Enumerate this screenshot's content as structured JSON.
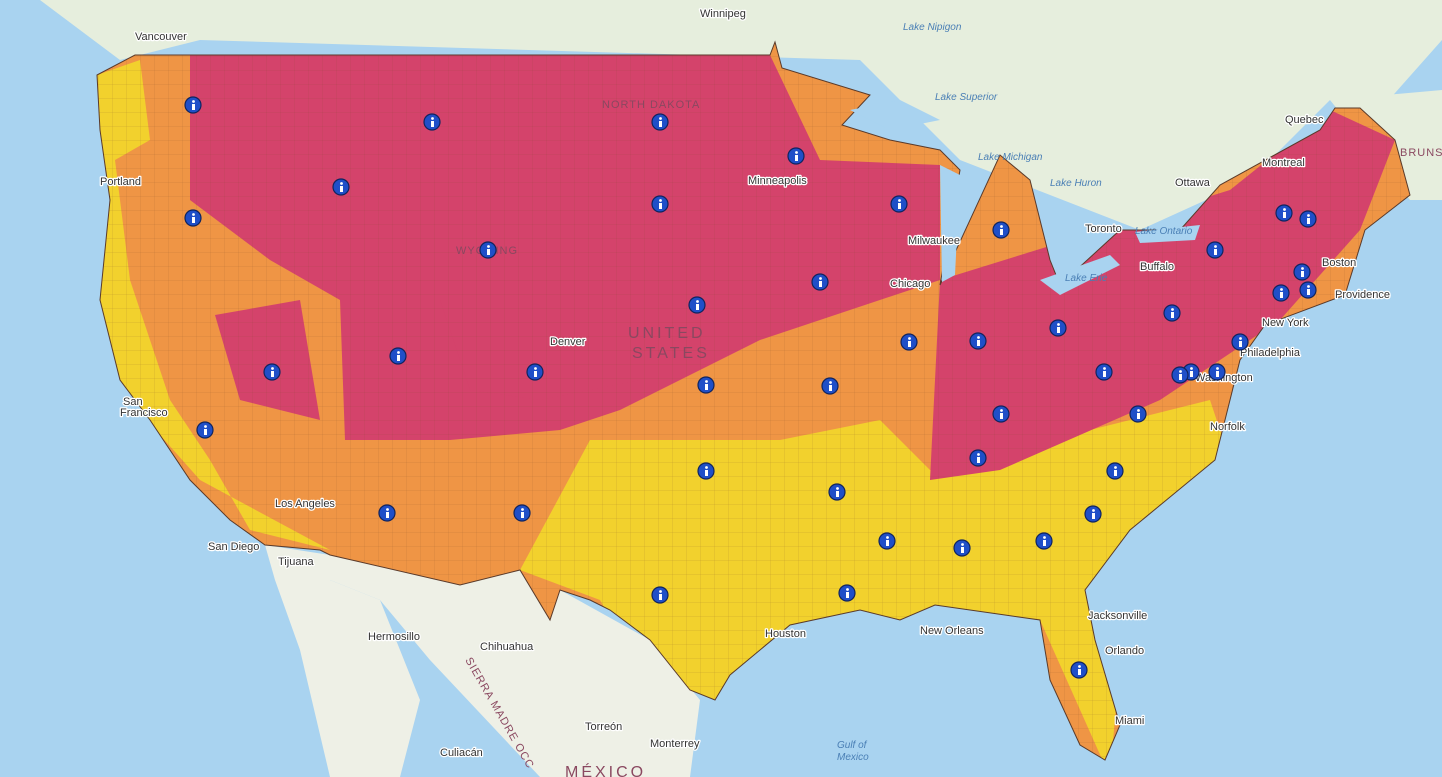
{
  "map": {
    "labels": [
      {
        "text": "Vancouver",
        "kind": "city"
      },
      {
        "text": "Winnipeg",
        "kind": "city"
      },
      {
        "text": "Lake Nipigon",
        "kind": "water"
      },
      {
        "text": "Lake Superior",
        "kind": "water"
      },
      {
        "text": "Quebec",
        "kind": "city"
      },
      {
        "text": "Montreal",
        "kind": "city"
      },
      {
        "text": "Ottawa",
        "kind": "city"
      },
      {
        "text": "Toronto",
        "kind": "city"
      },
      {
        "text": "Lake Ontario",
        "kind": "water"
      },
      {
        "text": "Lake Huron",
        "kind": "water"
      },
      {
        "text": "Lake Michigan",
        "kind": "water"
      },
      {
        "text": "Lake Erie",
        "kind": "water"
      },
      {
        "text": "BRUNS",
        "kind": "region"
      },
      {
        "text": "NORTH DAKOTA",
        "kind": "region"
      },
      {
        "text": "WYOMING",
        "kind": "region"
      },
      {
        "text": "Minneapolis",
        "kind": "city"
      },
      {
        "text": "Milwaukee",
        "kind": "city"
      },
      {
        "text": "Chicago",
        "kind": "city"
      },
      {
        "text": "Denver",
        "kind": "city"
      },
      {
        "text": "UNITED",
        "kind": "country"
      },
      {
        "text": "STATES",
        "kind": "country"
      },
      {
        "text": "Buffalo",
        "kind": "city"
      },
      {
        "text": "Boston",
        "kind": "city"
      },
      {
        "text": "Providence",
        "kind": "city"
      },
      {
        "text": "New York",
        "kind": "city"
      },
      {
        "text": "Philadelphia",
        "kind": "city"
      },
      {
        "text": "Washington",
        "kind": "city"
      },
      {
        "text": "Norfolk",
        "kind": "city"
      },
      {
        "text": "Portland",
        "kind": "city"
      },
      {
        "text": "San",
        "kind": "city"
      },
      {
        "text": "Francisco",
        "kind": "city"
      },
      {
        "text": "Los Angeles",
        "kind": "city"
      },
      {
        "text": "San Diego",
        "kind": "city"
      },
      {
        "text": "Tijuana",
        "kind": "city"
      },
      {
        "text": "Hermosillo",
        "kind": "city"
      },
      {
        "text": "Chihuahua",
        "kind": "city"
      },
      {
        "text": "SIERRA MADRE OCC",
        "kind": "region"
      },
      {
        "text": "Torreón",
        "kind": "city"
      },
      {
        "text": "Culiacán",
        "kind": "city"
      },
      {
        "text": "Monterrey",
        "kind": "city"
      },
      {
        "text": "MÉXICO",
        "kind": "country"
      },
      {
        "text": "Gulf of",
        "kind": "water"
      },
      {
        "text": "Mexico",
        "kind": "water"
      },
      {
        "text": "Houston",
        "kind": "city"
      },
      {
        "text": "New Orleans",
        "kind": "city"
      },
      {
        "text": "Jacksonville",
        "kind": "city"
      },
      {
        "text": "Orlando",
        "kind": "city"
      },
      {
        "text": "Miami",
        "kind": "city"
      }
    ]
  }
}
